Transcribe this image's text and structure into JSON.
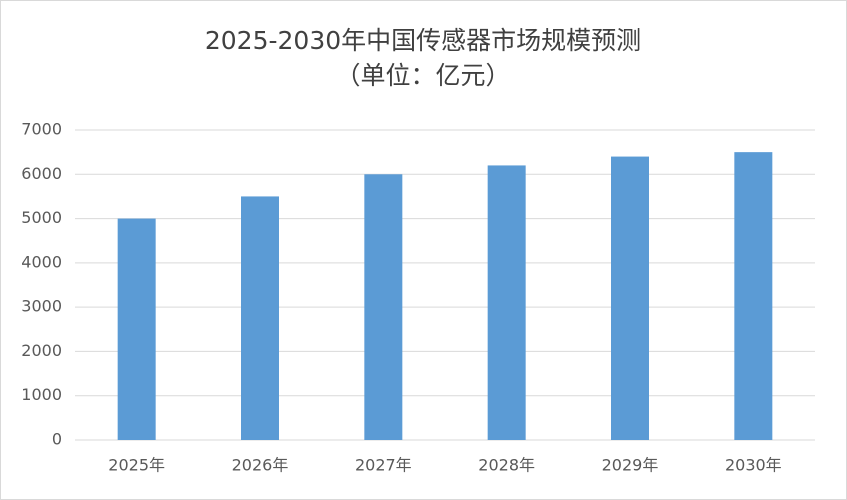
{
  "chart_data": {
    "type": "bar",
    "title": "2025-2030年中国传感器市场规模预测",
    "subtitle": "（单位：亿元）",
    "categories": [
      "2025年",
      "2026年",
      "2027年",
      "2028年",
      "2029年",
      "2030年"
    ],
    "values": [
      5000,
      5500,
      6000,
      6200,
      6400,
      6500
    ],
    "color": "#5b9bd5",
    "ylim": [
      0,
      7000
    ],
    "yticks": [
      0,
      1000,
      2000,
      3000,
      4000,
      5000,
      6000,
      7000
    ],
    "grid": true
  }
}
